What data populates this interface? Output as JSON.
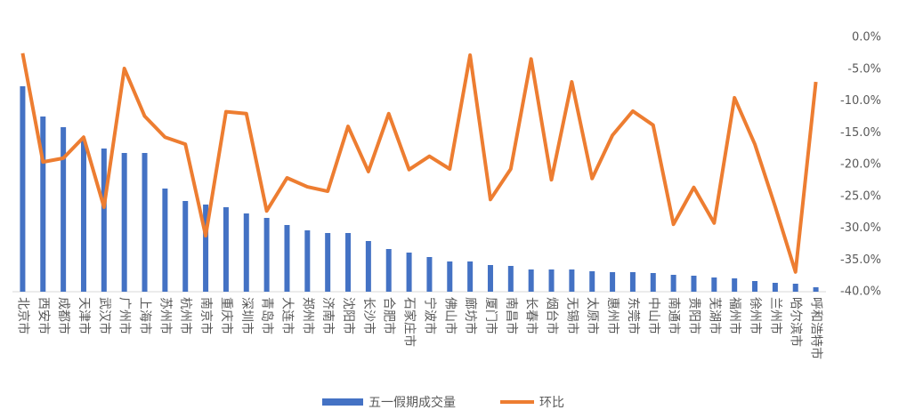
{
  "chart_data": {
    "type": "bar",
    "categories": [
      "北京市",
      "西安市",
      "成都市",
      "天津市",
      "武汉市",
      "广州市",
      "上海市",
      "苏州市",
      "杭州市",
      "南京市",
      "重庆市",
      "深圳市",
      "青岛市",
      "大连市",
      "郑州市",
      "济南市",
      "沈阳市",
      "长沙市",
      "合肥市",
      "石家庄市",
      "宁波市",
      "佛山市",
      "廊坊市",
      "厦门市",
      "南昌市",
      "长春市",
      "烟台市",
      "无锡市",
      "太原市",
      "惠州市",
      "东莞市",
      "中山市",
      "南通市",
      "贵阳市",
      "芜湖市",
      "福州市",
      "徐州市",
      "兰州市",
      "哈尔滨市",
      "呼和浩特市"
    ],
    "series": [
      {
        "name": "五一假期成交量",
        "type": "bar",
        "color": "#4472c4",
        "values": [
          231,
          197,
          185,
          170,
          161,
          156,
          156,
          116,
          102,
          98,
          95,
          88,
          83,
          75,
          69,
          66,
          66,
          57,
          48,
          44,
          39,
          34,
          34,
          30,
          29,
          25,
          25,
          25,
          23,
          22,
          22,
          21,
          19,
          18,
          16,
          15,
          12,
          10,
          9,
          5
        ]
      },
      {
        "name": "环比",
        "type": "line",
        "axis": "y2",
        "color": "#ed7d31",
        "values": [
          -2.5,
          -19.6,
          -19.0,
          -15.7,
          -26.7,
          -4.9,
          -12.4,
          -15.7,
          -16.8,
          -31.2,
          -11.7,
          -12.0,
          -27.3,
          -22.1,
          -23.5,
          -24.2,
          -14.0,
          -21.1,
          -12.0,
          -20.8,
          -18.7,
          -20.7,
          -2.8,
          -25.5,
          -20.7,
          -3.4,
          -22.4,
          -7.0,
          -22.2,
          -15.4,
          -11.6,
          -13.8,
          -29.4,
          -23.6,
          -29.2,
          -9.5,
          -16.8,
          -26.6,
          -36.9,
          -7.0
        ]
      }
    ],
    "ylim": [
      0,
      286
    ],
    "y2lim": [
      -40,
      0
    ],
    "y2ticks": [
      {
        "value": 0,
        "label": "0.0%"
      },
      {
        "value": -5,
        "label": "-5.0%"
      },
      {
        "value": -10,
        "label": "-10.0%"
      },
      {
        "value": -15,
        "label": "-15.0%"
      },
      {
        "value": -20,
        "label": "-20.0%"
      },
      {
        "value": -25,
        "label": "-25.0%"
      },
      {
        "value": -30,
        "label": "-30.0%"
      },
      {
        "value": -35,
        "label": "-35.0%"
      },
      {
        "value": -40,
        "label": "-40.0%"
      }
    ],
    "legend": "bottom"
  }
}
